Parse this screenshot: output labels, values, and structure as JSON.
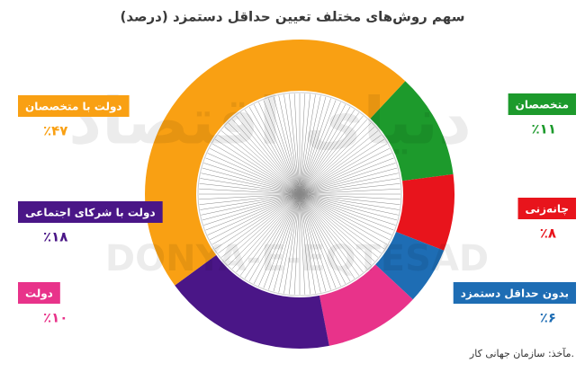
{
  "chart_data": {
    "type": "donut",
    "title": "سهم روش‌های مختلف تعیین حداقل دستمزد (درصد)",
    "categories": [
      "متخصصان",
      "چانه‌زنی",
      "بدون حداقل دستمزد",
      "دولت",
      "دولت با شرکای اجتماعی",
      "دولت با متخصصان"
    ],
    "values": [
      11,
      8,
      6,
      10,
      18,
      47
    ],
    "value_labels": [
      "٪۱۱",
      "٪۸",
      "٪۶",
      "٪۱۰",
      "٪۱۸",
      "٪۴۷"
    ],
    "colors": [
      "#1d9a2c",
      "#e8141c",
      "#1e6db4",
      "#e8338a",
      "#4a1687",
      "#f9a013"
    ],
    "source": "مآخذ: سازمان جهانی کار.",
    "watermark": "دنیای اقتصاد",
    "watermark_latin": "DONYA-E-EQTESAD"
  }
}
